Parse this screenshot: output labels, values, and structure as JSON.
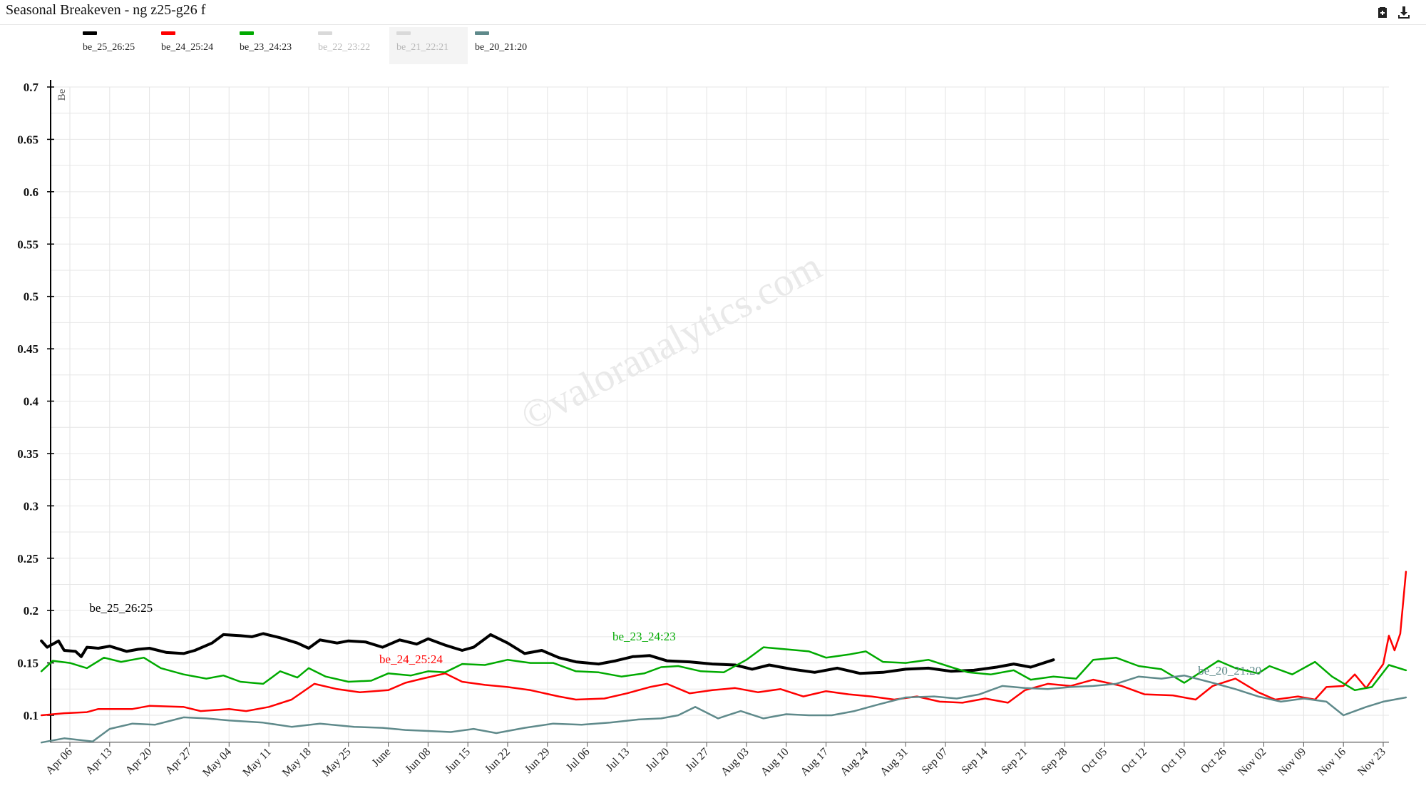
{
  "title": "Seasonal Breakeven - ng z25-g26 f",
  "toolbar": {
    "icons": [
      "clipboard-icon",
      "download-icon"
    ]
  },
  "watermark": "©valoranalytics.com",
  "legend": [
    {
      "label": "be_25_26:25",
      "color": "#000000",
      "enabled": true
    },
    {
      "label": "be_24_25:24",
      "color": "#ff0000",
      "enabled": true
    },
    {
      "label": "be_23_24:23",
      "color": "#00aa00",
      "enabled": true
    },
    {
      "label": "be_22_23:22",
      "color": "#d9d9d9",
      "enabled": false
    },
    {
      "label": "be_21_22:21",
      "color": "#d9d9d9",
      "enabled": false
    },
    {
      "label": "be_20_21:20",
      "color": "#5f8a8b",
      "enabled": true
    }
  ],
  "chart_data": {
    "type": "line",
    "ylabel": "Be",
    "ylim": [
      0.08,
      0.7
    ],
    "yticks": [
      0.1,
      0.15,
      0.2,
      0.25,
      0.3,
      0.35,
      0.4,
      0.45,
      0.5,
      0.55,
      0.6,
      0.65,
      0.7
    ],
    "xlim": [
      "Apr 01",
      "Nov 25"
    ],
    "xticks": [
      "Apr 06",
      "Apr 13",
      "Apr 20",
      "Apr 27",
      "May 04",
      "May 11",
      "May 18",
      "May 25",
      "June",
      "Jun 08",
      "Jun 15",
      "Jun 22",
      "Jun 29",
      "Jul 06",
      "Jul 13",
      "Jul 20",
      "Jul 27",
      "Aug 03",
      "Aug 10",
      "Aug 17",
      "Aug 24",
      "Aug 31",
      "Sep 07",
      "Sep 14",
      "Sep 21",
      "Sep 28",
      "Oct 05",
      "Oct 12",
      "Oct 19",
      "Oct 26",
      "Nov 02",
      "Nov 09",
      "Nov 16",
      "Nov 23"
    ],
    "grid": true,
    "legend_position": "top-left",
    "series": [
      {
        "name": "be_25_26:25",
        "color": "#000000",
        "label_at": "Apr 15",
        "points": [
          [
            "Apr 01",
            0.171
          ],
          [
            "Apr 02",
            0.165
          ],
          [
            "Apr 04",
            0.171
          ],
          [
            "Apr 05",
            0.162
          ],
          [
            "Apr 07",
            0.161
          ],
          [
            "Apr 08",
            0.156
          ],
          [
            "Apr 09",
            0.165
          ],
          [
            "Apr 11",
            0.164
          ],
          [
            "Apr 13",
            0.166
          ],
          [
            "Apr 16",
            0.161
          ],
          [
            "Apr 18",
            0.163
          ],
          [
            "Apr 20",
            0.164
          ],
          [
            "Apr 23",
            0.16
          ],
          [
            "Apr 26",
            0.159
          ],
          [
            "Apr 28",
            0.162
          ],
          [
            "May 01",
            0.169
          ],
          [
            "May 03",
            0.177
          ],
          [
            "May 06",
            0.176
          ],
          [
            "May 08",
            0.175
          ],
          [
            "May 10",
            0.178
          ],
          [
            "May 13",
            0.174
          ],
          [
            "May 16",
            0.169
          ],
          [
            "May 18",
            0.164
          ],
          [
            "May 20",
            0.172
          ],
          [
            "May 23",
            0.169
          ],
          [
            "May 25",
            0.171
          ],
          [
            "May 28",
            0.17
          ],
          [
            "May 31",
            0.165
          ],
          [
            "Jun 03",
            0.172
          ],
          [
            "Jun 06",
            0.168
          ],
          [
            "Jun 08",
            0.173
          ],
          [
            "Jun 11",
            0.167
          ],
          [
            "Jun 14",
            0.162
          ],
          [
            "Jun 16",
            0.165
          ],
          [
            "Jun 19",
            0.177
          ],
          [
            "Jun 22",
            0.169
          ],
          [
            "Jun 25",
            0.159
          ],
          [
            "Jun 28",
            0.162
          ],
          [
            "Jul 01",
            0.155
          ],
          [
            "Jul 04",
            0.151
          ],
          [
            "Jul 08",
            0.149
          ],
          [
            "Jul 11",
            0.152
          ],
          [
            "Jul 14",
            0.156
          ],
          [
            "Jul 17",
            0.157
          ],
          [
            "Jul 20",
            0.152
          ],
          [
            "Jul 24",
            0.151
          ],
          [
            "Jul 28",
            0.149
          ],
          [
            "Aug 01",
            0.148
          ],
          [
            "Aug 04",
            0.144
          ],
          [
            "Aug 07",
            0.148
          ],
          [
            "Aug 11",
            0.144
          ],
          [
            "Aug 15",
            0.141
          ],
          [
            "Aug 19",
            0.145
          ],
          [
            "Aug 23",
            0.14
          ],
          [
            "Aug 27",
            0.141
          ],
          [
            "Aug 31",
            0.144
          ],
          [
            "Sep 04",
            0.145
          ],
          [
            "Sep 08",
            0.142
          ],
          [
            "Sep 12",
            0.143
          ],
          [
            "Sep 16",
            0.146
          ],
          [
            "Sep 19",
            0.149
          ],
          [
            "Sep 22",
            0.146
          ],
          [
            "Sep 26",
            0.153
          ]
        ]
      },
      {
        "name": "be_24_25:24",
        "color": "#ff0000",
        "label_at": "Jun 05",
        "points": [
          [
            "Apr 01",
            0.1
          ],
          [
            "Apr 05",
            0.102
          ],
          [
            "Apr 09",
            0.103
          ],
          [
            "Apr 11",
            0.106
          ],
          [
            "Apr 17",
            0.106
          ],
          [
            "Apr 20",
            0.109
          ],
          [
            "Apr 26",
            0.108
          ],
          [
            "Apr 29",
            0.104
          ],
          [
            "May 04",
            0.106
          ],
          [
            "May 07",
            0.104
          ],
          [
            "May 11",
            0.108
          ],
          [
            "May 15",
            0.115
          ],
          [
            "May 19",
            0.13
          ],
          [
            "May 23",
            0.125
          ],
          [
            "May 27",
            0.122
          ],
          [
            "Jun 01",
            0.124
          ],
          [
            "Jun 04",
            0.131
          ],
          [
            "Jun 07",
            0.135
          ],
          [
            "Jun 11",
            0.14
          ],
          [
            "Jun 14",
            0.132
          ],
          [
            "Jun 18",
            0.129
          ],
          [
            "Jun 22",
            0.127
          ],
          [
            "Jun 26",
            0.124
          ],
          [
            "Jul 01",
            0.118
          ],
          [
            "Jul 04",
            0.115
          ],
          [
            "Jul 09",
            0.116
          ],
          [
            "Jul 13",
            0.121
          ],
          [
            "Jul 17",
            0.127
          ],
          [
            "Jul 20",
            0.13
          ],
          [
            "Jul 24",
            0.121
          ],
          [
            "Jul 28",
            0.124
          ],
          [
            "Aug 01",
            0.126
          ],
          [
            "Aug 05",
            0.122
          ],
          [
            "Aug 09",
            0.125
          ],
          [
            "Aug 13",
            0.118
          ],
          [
            "Aug 17",
            0.123
          ],
          [
            "Aug 21",
            0.12
          ],
          [
            "Aug 25",
            0.118
          ],
          [
            "Aug 29",
            0.115
          ],
          [
            "Sep 02",
            0.118
          ],
          [
            "Sep 06",
            0.113
          ],
          [
            "Sep 10",
            0.112
          ],
          [
            "Sep 14",
            0.116
          ],
          [
            "Sep 18",
            0.112
          ],
          [
            "Sep 21",
            0.124
          ],
          [
            "Sep 25",
            0.13
          ],
          [
            "Sep 29",
            0.128
          ],
          [
            "Oct 03",
            0.134
          ],
          [
            "Oct 08",
            0.128
          ],
          [
            "Oct 12",
            0.12
          ],
          [
            "Oct 17",
            0.119
          ],
          [
            "Oct 21",
            0.115
          ],
          [
            "Oct 24",
            0.128
          ],
          [
            "Oct 28",
            0.135
          ],
          [
            "Nov 01",
            0.122
          ],
          [
            "Nov 04",
            0.115
          ],
          [
            "Nov 08",
            0.118
          ],
          [
            "Nov 11",
            0.115
          ],
          [
            "Nov 13",
            0.127
          ],
          [
            "Nov 16",
            0.128
          ],
          [
            "Nov 18",
            0.139
          ],
          [
            "Nov 20",
            0.126
          ],
          [
            "Nov 23",
            0.149
          ],
          [
            "Nov 24",
            0.176
          ],
          [
            "Nov 25",
            0.162
          ],
          [
            "Nov 26",
            0.178
          ],
          [
            "Nov 27",
            0.237
          ]
        ]
      },
      {
        "name": "be_23_24:23",
        "color": "#00aa00",
        "label_at": "Jul 16",
        "points": [
          [
            "Apr 01",
            0.142
          ],
          [
            "Apr 03",
            0.152
          ],
          [
            "Apr 06",
            0.15
          ],
          [
            "Apr 09",
            0.145
          ],
          [
            "Apr 12",
            0.155
          ],
          [
            "Apr 15",
            0.151
          ],
          [
            "Apr 19",
            0.155
          ],
          [
            "Apr 22",
            0.145
          ],
          [
            "Apr 26",
            0.139
          ],
          [
            "Apr 30",
            0.135
          ],
          [
            "May 03",
            0.138
          ],
          [
            "May 06",
            0.132
          ],
          [
            "May 10",
            0.13
          ],
          [
            "May 13",
            0.142
          ],
          [
            "May 16",
            0.136
          ],
          [
            "May 18",
            0.145
          ],
          [
            "May 21",
            0.137
          ],
          [
            "May 25",
            0.132
          ],
          [
            "May 29",
            0.133
          ],
          [
            "Jun 01",
            0.14
          ],
          [
            "Jun 05",
            0.138
          ],
          [
            "Jun 08",
            0.142
          ],
          [
            "Jun 11",
            0.141
          ],
          [
            "Jun 14",
            0.149
          ],
          [
            "Jun 18",
            0.148
          ],
          [
            "Jun 22",
            0.153
          ],
          [
            "Jun 26",
            0.15
          ],
          [
            "Jun 30",
            0.15
          ],
          [
            "Jul 04",
            0.142
          ],
          [
            "Jul 08",
            0.141
          ],
          [
            "Jul 12",
            0.137
          ],
          [
            "Jul 16",
            0.14
          ],
          [
            "Jul 19",
            0.146
          ],
          [
            "Jul 22",
            0.147
          ],
          [
            "Jul 26",
            0.142
          ],
          [
            "Jul 30",
            0.141
          ],
          [
            "Aug 03",
            0.153
          ],
          [
            "Aug 06",
            0.165
          ],
          [
            "Aug 10",
            0.163
          ],
          [
            "Aug 14",
            0.161
          ],
          [
            "Aug 17",
            0.155
          ],
          [
            "Aug 21",
            0.158
          ],
          [
            "Aug 24",
            0.161
          ],
          [
            "Aug 27",
            0.151
          ],
          [
            "Aug 31",
            0.15
          ],
          [
            "Sep 04",
            0.153
          ],
          [
            "Sep 08",
            0.146
          ],
          [
            "Sep 11",
            0.141
          ],
          [
            "Sep 15",
            0.139
          ],
          [
            "Sep 19",
            0.143
          ],
          [
            "Sep 22",
            0.134
          ],
          [
            "Sep 26",
            0.137
          ],
          [
            "Sep 30",
            0.135
          ],
          [
            "Oct 03",
            0.153
          ],
          [
            "Oct 07",
            0.155
          ],
          [
            "Oct 11",
            0.147
          ],
          [
            "Oct 15",
            0.144
          ],
          [
            "Oct 19",
            0.131
          ],
          [
            "Oct 23",
            0.145
          ],
          [
            "Oct 25",
            0.152
          ],
          [
            "Oct 28",
            0.145
          ],
          [
            "Nov 01",
            0.14
          ],
          [
            "Nov 03",
            0.147
          ],
          [
            "Nov 07",
            0.139
          ],
          [
            "Nov 11",
            0.151
          ],
          [
            "Nov 14",
            0.137
          ],
          [
            "Nov 18",
            0.124
          ],
          [
            "Nov 21",
            0.127
          ],
          [
            "Nov 24",
            0.148
          ],
          [
            "Nov 27",
            0.143
          ]
        ]
      },
      {
        "name": "be_20_21:20",
        "color": "#5f8a8b",
        "label_at": "Oct 27",
        "points": [
          [
            "Apr 01",
            0.074
          ],
          [
            "Apr 05",
            0.078
          ],
          [
            "Apr 10",
            0.075
          ],
          [
            "Apr 13",
            0.087
          ],
          [
            "Apr 17",
            0.092
          ],
          [
            "Apr 21",
            0.091
          ],
          [
            "Apr 26",
            0.098
          ],
          [
            "Apr 30",
            0.097
          ],
          [
            "May 04",
            0.095
          ],
          [
            "May 10",
            0.093
          ],
          [
            "May 15",
            0.089
          ],
          [
            "May 20",
            0.092
          ],
          [
            "May 26",
            0.089
          ],
          [
            "May 31",
            0.088
          ],
          [
            "Jun 04",
            0.086
          ],
          [
            "Jun 08",
            0.085
          ],
          [
            "Jun 12",
            0.084
          ],
          [
            "Jun 16",
            0.087
          ],
          [
            "Jun 20",
            0.083
          ],
          [
            "Jun 25",
            0.088
          ],
          [
            "Jun 30",
            0.092
          ],
          [
            "Jul 05",
            0.091
          ],
          [
            "Jul 10",
            0.093
          ],
          [
            "Jul 15",
            0.096
          ],
          [
            "Jul 19",
            0.097
          ],
          [
            "Jul 22",
            0.1
          ],
          [
            "Jul 25",
            0.108
          ],
          [
            "Jul 29",
            0.097
          ],
          [
            "Aug 02",
            0.104
          ],
          [
            "Aug 06",
            0.097
          ],
          [
            "Aug 10",
            0.101
          ],
          [
            "Aug 14",
            0.1
          ],
          [
            "Aug 18",
            0.1
          ],
          [
            "Aug 22",
            0.104
          ],
          [
            "Aug 26",
            0.11
          ],
          [
            "Aug 31",
            0.117
          ],
          [
            "Sep 05",
            0.118
          ],
          [
            "Sep 09",
            0.116
          ],
          [
            "Sep 13",
            0.12
          ],
          [
            "Sep 17",
            0.128
          ],
          [
            "Sep 21",
            0.126
          ],
          [
            "Sep 25",
            0.125
          ],
          [
            "Sep 29",
            0.127
          ],
          [
            "Oct 03",
            0.128
          ],
          [
            "Oct 07",
            0.13
          ],
          [
            "Oct 11",
            0.137
          ],
          [
            "Oct 15",
            0.135
          ],
          [
            "Oct 19",
            0.138
          ],
          [
            "Oct 24",
            0.131
          ],
          [
            "Oct 28",
            0.125
          ],
          [
            "Nov 01",
            0.118
          ],
          [
            "Nov 05",
            0.113
          ],
          [
            "Nov 09",
            0.116
          ],
          [
            "Nov 13",
            0.113
          ],
          [
            "Nov 16",
            0.1
          ],
          [
            "Nov 20",
            0.108
          ],
          [
            "Nov 23",
            0.113
          ],
          [
            "Nov 27",
            0.117
          ]
        ]
      }
    ]
  }
}
